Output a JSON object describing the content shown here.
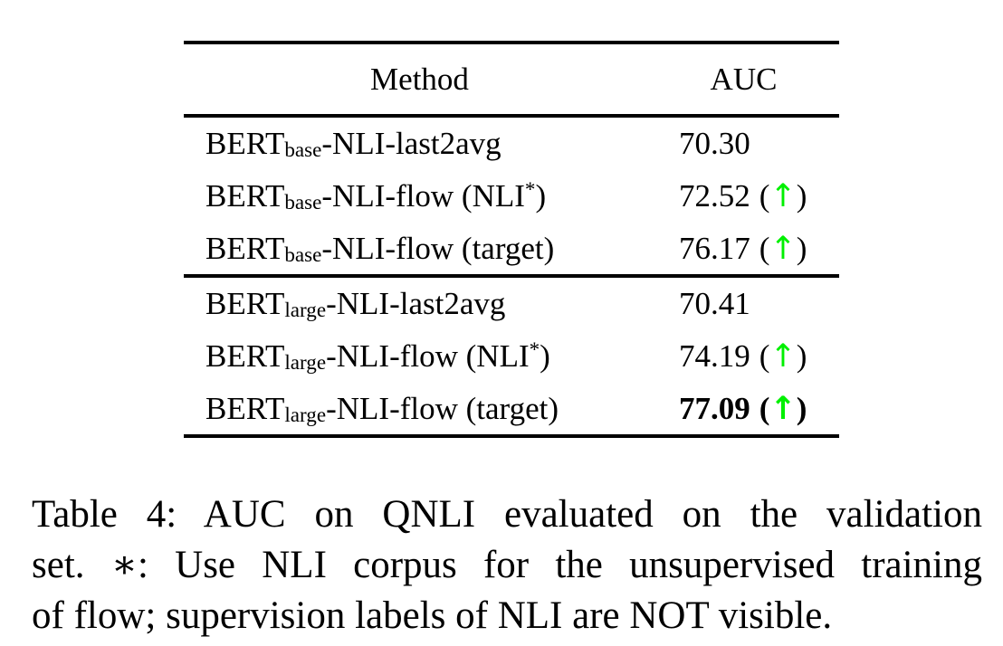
{
  "table": {
    "header": {
      "method": "Method",
      "auc": "AUC"
    },
    "groups": [
      {
        "rows": [
          {
            "model": "BERT",
            "size": "base",
            "name_mid": "-NLI-last2avg",
            "name_sup": "",
            "name_post": "",
            "auc": "70.30",
            "paren_l": "",
            "arrow": "",
            "paren_r": ""
          },
          {
            "model": "BERT",
            "size": "base",
            "name_mid": "-NLI-flow (NLI",
            "name_sup": "*",
            "name_post": ")",
            "auc": "72.52",
            "paren_l": "(",
            "arrow": "↑",
            "paren_r": ")"
          },
          {
            "model": "BERT",
            "size": "base",
            "name_mid": "-NLI-flow (target)",
            "name_sup": "",
            "name_post": "",
            "auc": "76.17",
            "paren_l": "(",
            "arrow": "↑",
            "paren_r": ")"
          }
        ]
      },
      {
        "rows": [
          {
            "model": "BERT",
            "size": "large",
            "name_mid": "-NLI-last2avg",
            "name_sup": "",
            "name_post": "",
            "auc": "70.41",
            "paren_l": "",
            "arrow": "",
            "paren_r": ""
          },
          {
            "model": "BERT",
            "size": "large",
            "name_mid": "-NLI-flow (NLI",
            "name_sup": "*",
            "name_post": ")",
            "auc": "74.19",
            "paren_l": "(",
            "arrow": "↑",
            "paren_r": ")"
          },
          {
            "model": "BERT",
            "size": "large",
            "name_mid": "-NLI-flow (target)",
            "name_sup": "",
            "name_post": "",
            "auc": "77.09",
            "paren_l": "(",
            "arrow": "↑",
            "paren_r": ")"
          }
        ]
      }
    ]
  },
  "caption": {
    "lines": [
      "Table 4: AUC on QNLI evaluated on the validation",
      "set. ∗: Use NLI corpus for the unsupervised training",
      "of flow; supervision labels of NLI are NOT visible."
    ]
  },
  "colors": {
    "background": "#ffffff",
    "text": "#000000",
    "arrow_green": "#00f000"
  }
}
